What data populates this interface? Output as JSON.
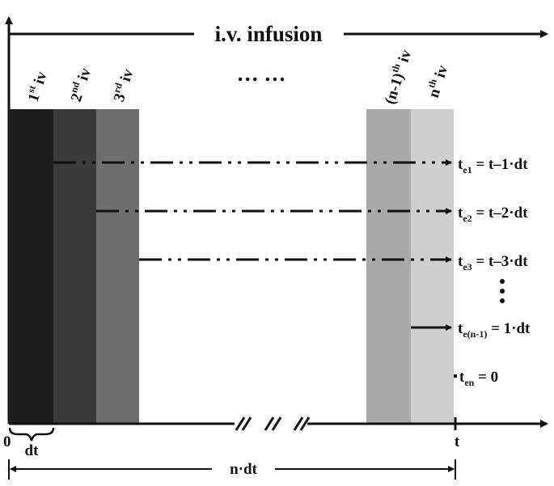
{
  "title": "i.v. infusion",
  "ellipsis_top": "…   …",
  "infusions": [
    {
      "base": "1",
      "sup": "st",
      "rest": " iv",
      "color": "#1e1e1e"
    },
    {
      "base": "2",
      "sup": "nd",
      "rest": " iv",
      "color": "#3b3b3b"
    },
    {
      "base": "3",
      "sup": "rd",
      "rest": " iv",
      "color": "#6e6e6e"
    },
    {
      "base": "(n-1)",
      "sup": "th",
      "rest": " iv",
      "color": "#a9a9a9"
    },
    {
      "base": "n",
      "sup": "th",
      "rest": " iv",
      "color": "#cfcfcf"
    }
  ],
  "elapsed": [
    {
      "t": "t",
      "sub": "e1",
      "rhs": " = t–1·dt"
    },
    {
      "t": "t",
      "sub": "e2",
      "rhs": " = t–2·dt"
    },
    {
      "t": "t",
      "sub": "e3",
      "rhs": " = t–3·dt"
    },
    {
      "t": "t",
      "sub": "e(n-1)",
      "rhs": " = 1·dt"
    },
    {
      "t": "t",
      "sub": "en",
      "rhs": " = 0"
    }
  ],
  "axis": {
    "origin": "0",
    "end": "t",
    "step": "dt",
    "span": "n·dt"
  }
}
